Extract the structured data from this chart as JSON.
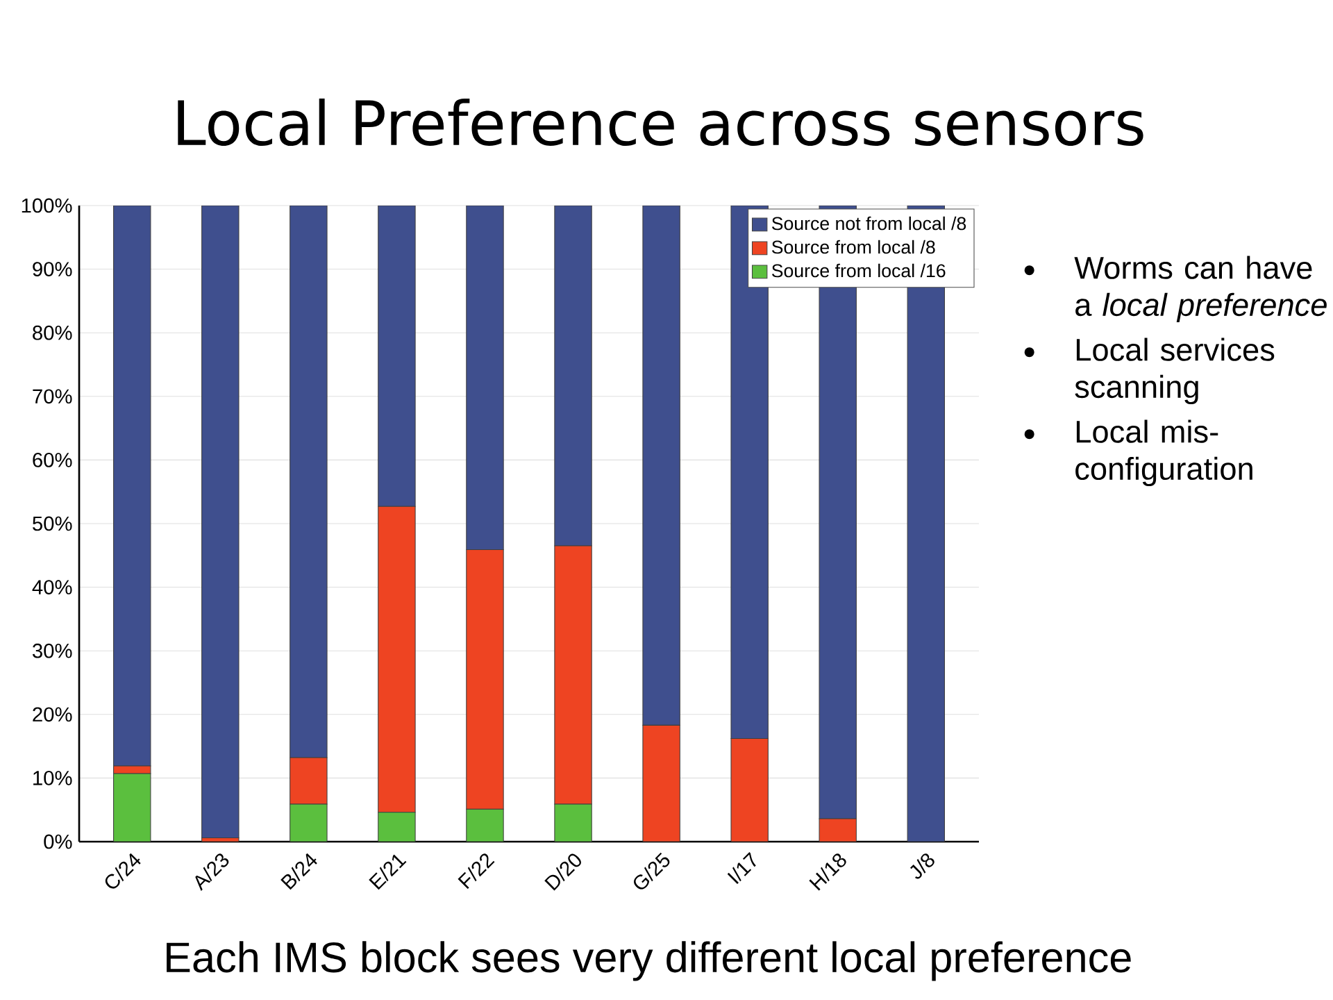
{
  "chart_data": {
    "type": "bar",
    "stacked": true,
    "title": "Local Preference across sensors",
    "categories": [
      "C/24",
      "A/23",
      "B/24",
      "E/21",
      "F/22",
      "D/20",
      "G/25",
      "I/17",
      "H/18",
      "J/8"
    ],
    "series": [
      {
        "name": "Source from local /16",
        "color": "#5bbf3e",
        "values": [
          10.7,
          0,
          5.9,
          4.6,
          5.1,
          5.9,
          0,
          0,
          0,
          0
        ]
      },
      {
        "name": "Source from local /8",
        "color": "#ee4422",
        "values": [
          1.2,
          0.6,
          7.3,
          48.1,
          40.8,
          40.6,
          18.3,
          16.2,
          3.6,
          0
        ]
      },
      {
        "name": "Source not from local /8",
        "color": "#3f4f8e",
        "values": [
          88.1,
          99.4,
          86.8,
          47.3,
          54.1,
          53.5,
          81.7,
          83.8,
          96.4,
          100
        ]
      }
    ],
    "ylim": [
      0,
      100
    ],
    "yticks": [
      {
        "value": 0,
        "label": "0%"
      },
      {
        "value": 10,
        "label": "10%"
      },
      {
        "value": 20,
        "label": "20%"
      },
      {
        "value": 30,
        "label": "30%"
      },
      {
        "value": 40,
        "label": "40%"
      },
      {
        "value": 50,
        "label": "50%"
      },
      {
        "value": 60,
        "label": "60%"
      },
      {
        "value": 70,
        "label": "70%"
      },
      {
        "value": 80,
        "label": "80%"
      },
      {
        "value": 90,
        "label": "90%"
      },
      {
        "value": 100,
        "label": "100%"
      }
    ],
    "grid": "y",
    "legend": "top right",
    "annotations": [
      "Worms can have a *local preference*",
      "Local services scanning",
      "Local mis-configuration",
      "Each IMS block sees very different local preference"
    ]
  }
}
